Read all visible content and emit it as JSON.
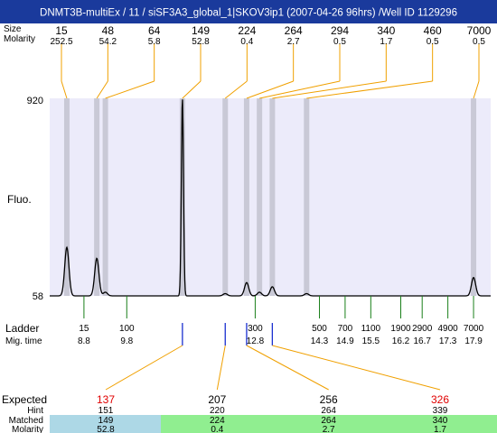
{
  "title": "DNMT3B-multiEx / 11 / siSF3A3_global_1|SKOV3ip1 (2007-04-26 96hrs) /Well ID 1129296",
  "row_labels": {
    "size": "Size",
    "molarity": "Molarity",
    "fluo": "Fluo.",
    "ladder": "Ladder",
    "mig_time": "Mig. time",
    "expected": "Expected",
    "hint": "Hint",
    "matched": "Matched",
    "molarity_bottom": "Molarity"
  },
  "colors": {
    "title_bar": "#1a3a9c",
    "plot_bg": "#ecebfa",
    "band": "#c9c9d6",
    "guide_line": "#f0a000",
    "ladder_tick": "#1a7f1a",
    "marker_tick": "#1a2fd0",
    "expected_red": "#e00000",
    "matched_blue": "#add8e6",
    "matched_green": "#90ee90"
  },
  "chart_data": {
    "type": "line",
    "y_range": [
      58,
      920
    ],
    "y_ticks": [
      "920",
      "58"
    ],
    "ylabel": "Fluo.",
    "x_range_time": [
      8.0,
      18.3
    ],
    "peaks": [
      {
        "size": "15",
        "molarity": "252.5",
        "time": 8.4,
        "height": 270
      },
      {
        "size": "48",
        "molarity": "54.2",
        "time": 9.1,
        "height": 222
      },
      {
        "size": "64",
        "molarity": "5.8",
        "time": 9.3,
        "height": 74
      },
      {
        "size": "149",
        "molarity": "52.8",
        "time": 11.1,
        "height": 920
      },
      {
        "size": "224",
        "molarity": "0.4",
        "time": 12.1,
        "height": 68
      },
      {
        "size": "264",
        "molarity": "2.7",
        "time": 12.6,
        "height": 116
      },
      {
        "size": "294",
        "molarity": "0.5",
        "time": 12.9,
        "height": 74
      },
      {
        "size": "340",
        "molarity": "1.7",
        "time": 13.2,
        "height": 98
      },
      {
        "size": "460",
        "molarity": "0.5",
        "time": 14.0,
        "height": 68
      },
      {
        "size": "7000",
        "molarity": "0.5",
        "time": 17.9,
        "height": 138
      }
    ],
    "ladder": [
      {
        "size": "15",
        "time": "8.8"
      },
      {
        "size": "100",
        "time": "9.8"
      },
      {
        "size": "300",
        "time": "12.8"
      },
      {
        "size": "500",
        "time": "14.3"
      },
      {
        "size": "700",
        "time": "14.9"
      },
      {
        "size": "1100",
        "time": "15.5"
      },
      {
        "size": "1900",
        "time": "16.2"
      },
      {
        "size": "2900",
        "time": "16.7"
      },
      {
        "size": "4900",
        "time": "17.3"
      },
      {
        "size": "7000",
        "time": "17.9"
      }
    ],
    "expected": [
      {
        "expected": "137",
        "hint": "151",
        "matched": "149",
        "molarity": "52.8",
        "match_time": 11.1,
        "flag": "red"
      },
      {
        "expected": "207",
        "hint": "220",
        "matched": "224",
        "molarity": "0.4",
        "match_time": 12.1,
        "flag": "black"
      },
      {
        "expected": "256",
        "hint": "264",
        "matched": "264",
        "molarity": "2.7",
        "match_time": 12.6,
        "flag": "black"
      },
      {
        "expected": "326",
        "hint": "339",
        "matched": "340",
        "molarity": "1.7",
        "match_time": 13.2,
        "flag": "red"
      }
    ]
  }
}
